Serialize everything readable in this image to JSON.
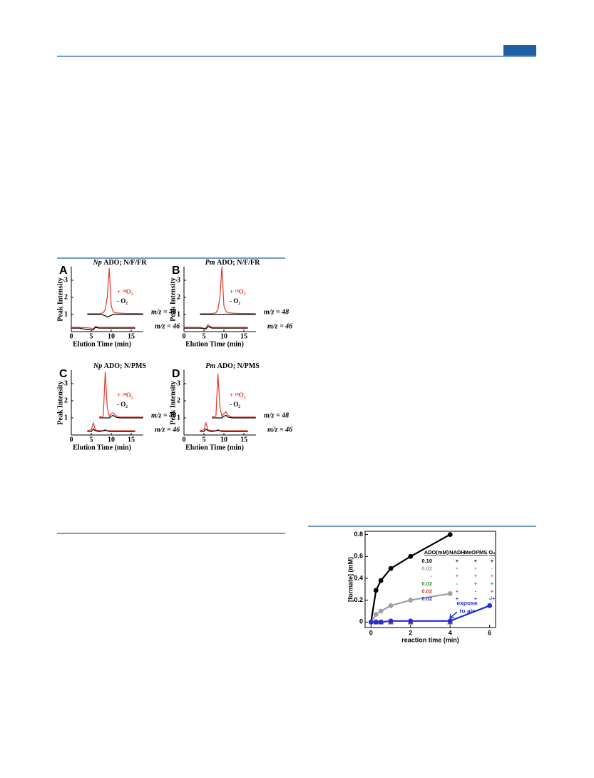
{
  "chart_data": [
    {
      "type": "line",
      "letter": "A",
      "species": "Np",
      "title": "ADO; N/F/FR",
      "xlabel": "Elution Time (min)",
      "ylabel": "Peak Intensity",
      "annotations": [
        "m/z = 48",
        "m/z = 46"
      ],
      "xlim": [
        0,
        18
      ],
      "ylim": [
        0,
        3.8
      ],
      "xticks": [
        0,
        5,
        10,
        15
      ],
      "yticks": [
        1,
        2,
        3
      ],
      "x": [
        0,
        2,
        4,
        5,
        5.5,
        6,
        7,
        8,
        8.5,
        9,
        9.5,
        10,
        10.5,
        11,
        12,
        14,
        16,
        18
      ],
      "series": [
        {
          "name": "+ ¹⁸O₂",
          "color": "#e8362c",
          "values": [
            null,
            null,
            1.05,
            1.05,
            1.05,
            1.05,
            1.05,
            1.1,
            1.3,
            2.0,
            3.7,
            1.5,
            1.15,
            1.1,
            1.08,
            1.06,
            1.06,
            1.05
          ]
        },
        {
          "name": "- O₂",
          "color": "#000000",
          "values": [
            null,
            null,
            1,
            1,
            1,
            1,
            1,
            0.97,
            0.92,
            0.85,
            0.9,
            0.95,
            1,
            1,
            1,
            1,
            1,
            1
          ]
        },
        {
          "color": "#e8362c",
          "values": [
            0.25,
            0.25,
            0.22,
            0.2,
            0.15,
            0.3,
            0.25,
            0.25,
            0.25,
            0.25,
            0.25,
            0.25,
            0.25,
            0.25,
            0.25,
            0.25,
            0.25,
            null
          ]
        },
        {
          "color": "#000000",
          "values": [
            0.2,
            0.2,
            0.12,
            0.1,
            0.1,
            0.25,
            0.2,
            0.2,
            0.2,
            0.2,
            0.2,
            0.2,
            0.2,
            0.2,
            0.2,
            0.2,
            0.2,
            null
          ]
        }
      ]
    },
    {
      "type": "line",
      "letter": "B",
      "species": "Pm",
      "title": "ADO; N/F/FR",
      "xlabel": "Elution Time (min)",
      "ylabel": "Peak Intensity",
      "annotations": [
        "m/z = 48",
        "m/z = 46"
      ],
      "xlim": [
        0,
        18
      ],
      "ylim": [
        0,
        3.8
      ],
      "xticks": [
        0,
        5,
        10,
        15
      ],
      "yticks": [
        1,
        2,
        3
      ],
      "x": [
        0,
        2,
        4,
        5,
        5.5,
        6,
        7,
        8,
        8.5,
        9,
        9.5,
        10,
        10.5,
        11,
        12,
        14,
        16,
        18
      ],
      "series": [
        {
          "name": "+ ¹⁸O₂",
          "color": "#e8362c",
          "values": [
            null,
            null,
            1.05,
            1.05,
            1.05,
            1.05,
            1.05,
            1.1,
            1.3,
            2.0,
            3.8,
            1.5,
            1.2,
            1.1,
            1.08,
            1.06,
            1.06,
            1.05
          ]
        },
        {
          "name": "- O₂",
          "color": "#000000",
          "values": [
            null,
            null,
            1,
            1,
            1,
            1,
            1,
            1,
            1,
            1,
            1,
            1,
            1.02,
            1,
            1,
            1,
            1,
            1
          ]
        },
        {
          "color": "#e8362c",
          "values": [
            0.25,
            0.25,
            0.25,
            0.2,
            0.2,
            0.4,
            0.25,
            0.25,
            0.25,
            0.25,
            0.25,
            0.25,
            0.25,
            0.25,
            0.25,
            0.25,
            0.25,
            null
          ]
        },
        {
          "color": "#000000",
          "values": [
            0.2,
            0.2,
            0.2,
            0.18,
            0.15,
            0.3,
            0.2,
            0.2,
            0.2,
            0.2,
            0.2,
            0.2,
            0.2,
            0.2,
            0.2,
            0.2,
            0.2,
            null
          ]
        }
      ]
    },
    {
      "type": "line",
      "letter": "C",
      "species": "Np",
      "title": "ADO; N/PMS",
      "xlabel": "Elution Time (min)",
      "ylabel": "Peak Intensity",
      "annotations": [
        "m/z = 48",
        "m/z = 46"
      ],
      "xlim": [
        0,
        18
      ],
      "ylim": [
        0,
        3.8
      ],
      "xticks": [
        0,
        5,
        10,
        15
      ],
      "yticks": [
        1,
        2,
        3
      ],
      "x": [
        0,
        2,
        4,
        5,
        5.5,
        6,
        7,
        8,
        8.5,
        9,
        9.5,
        10,
        10.5,
        11,
        12,
        14,
        16,
        18
      ],
      "series": [
        {
          "name": "+ ¹⁸O₂",
          "color": "#e8362c",
          "values": [
            null,
            null,
            null,
            null,
            null,
            null,
            1.05,
            1.1,
            3.7,
            1.6,
            1.1,
            1.25,
            1.3,
            1.15,
            1.05,
            1.05,
            1.05,
            1.05
          ]
        },
        {
          "name": "- O₂",
          "color": "#000000",
          "values": [
            null,
            null,
            null,
            null,
            null,
            null,
            1,
            1,
            1,
            1,
            1,
            1.1,
            1.15,
            1.05,
            1,
            1,
            1,
            1
          ]
        },
        {
          "color": "#e8362c",
          "values": [
            null,
            null,
            0.25,
            0.3,
            0.7,
            0.3,
            0.25,
            0.25,
            0.25,
            0.25,
            0.25,
            0.25,
            0.25,
            0.25,
            0.25,
            0.25,
            0.25,
            null
          ]
        },
        {
          "color": "#000000",
          "values": [
            null,
            null,
            0.2,
            0.2,
            0.35,
            0.25,
            0.2,
            0.25,
            0.3,
            0.25,
            0.2,
            0.2,
            0.2,
            0.2,
            0.2,
            0.2,
            0.2,
            null
          ]
        }
      ]
    },
    {
      "type": "line",
      "letter": "D",
      "species": "Pm",
      "title": "ADO; N/PMS",
      "xlabel": "Elution Time (min)",
      "ylabel": "Peak Intensity",
      "annotations": [
        "m/z = 48",
        "m/z = 46"
      ],
      "xlim": [
        0,
        18
      ],
      "ylim": [
        0,
        3.8
      ],
      "xticks": [
        0,
        5,
        10,
        15
      ],
      "yticks": [
        1,
        2,
        3
      ],
      "x": [
        0,
        2,
        4,
        5,
        5.5,
        6,
        7,
        8,
        8.5,
        9,
        9.5,
        10,
        10.5,
        11,
        12,
        14,
        16,
        18
      ],
      "series": [
        {
          "name": "+ ¹⁸O₂",
          "color": "#e8362c",
          "values": [
            null,
            null,
            null,
            null,
            null,
            null,
            1.05,
            1.1,
            3.6,
            1.6,
            1.1,
            1.25,
            1.35,
            1.15,
            1.05,
            1.05,
            1.05,
            1.05
          ]
        },
        {
          "name": "- O₂",
          "color": "#000000",
          "values": [
            null,
            null,
            null,
            null,
            null,
            null,
            1,
            1,
            1,
            1,
            1,
            1.1,
            1.15,
            1.05,
            1,
            1,
            1,
            1
          ]
        },
        {
          "color": "#e8362c",
          "values": [
            null,
            null,
            0.25,
            0.3,
            0.7,
            0.3,
            0.25,
            0.25,
            0.25,
            0.25,
            0.25,
            0.25,
            0.25,
            0.25,
            0.25,
            0.25,
            0.25,
            null
          ]
        },
        {
          "color": "#000000",
          "values": [
            null,
            null,
            0.2,
            0.2,
            0.35,
            0.25,
            0.2,
            0.25,
            0.3,
            0.25,
            0.2,
            0.2,
            0.2,
            0.2,
            0.2,
            0.2,
            0.2,
            null
          ]
        }
      ]
    },
    {
      "type": "scatter",
      "xlabel": "reaction time (min)",
      "ylabel": "[formate] (mM)",
      "annotation": [
        "expose",
        "to air"
      ],
      "xlim": [
        -0.3,
        6.3
      ],
      "ylim": [
        -0.05,
        0.83
      ],
      "xticks": [
        0,
        2,
        4,
        6
      ],
      "yticks": [
        0,
        0.2,
        0.4,
        0.6,
        0.8
      ],
      "legend_header": [
        "ADO(mM)",
        "NADH",
        "MeOPMS",
        "O₂"
      ],
      "series": [
        {
          "legend_row": [
            "0.10",
            "+",
            "+",
            "+"
          ],
          "color": "#000000",
          "marker": "circle",
          "line": true,
          "x": [
            0,
            0.25,
            0.5,
            1,
            2,
            4
          ],
          "values": [
            0,
            0.29,
            0.38,
            0.49,
            0.6,
            0.8
          ]
        },
        {
          "legend_row": [
            "0.02",
            "+",
            "+",
            "-"
          ],
          "color": "#a0a0a0",
          "marker": "circle",
          "line": true,
          "x": [
            0,
            0.25,
            0.5,
            1,
            2,
            4
          ],
          "values": [
            0,
            0.07,
            0.1,
            0.15,
            0.2,
            0.26
          ]
        },
        {
          "legend_row": [
            "-",
            "+",
            "+",
            "+"
          ],
          "color": "#cc33cc",
          "marker": "triangle",
          "line": false,
          "x": [
            0.25,
            0.5,
            1,
            2,
            4
          ],
          "values": [
            0,
            0,
            0,
            0,
            0
          ]
        },
        {
          "legend_row": [
            "0.02",
            "-",
            "+",
            "+"
          ],
          "color": "#2e8b2e",
          "marker": "triangle",
          "line": false,
          "x": [
            0.25,
            0.5,
            1,
            2,
            4
          ],
          "values": [
            0,
            0,
            0,
            0,
            0
          ]
        },
        {
          "legend_row": [
            "0.02",
            "+",
            "-",
            "+"
          ],
          "color": "#e03020",
          "marker": "square",
          "line": false,
          "x": [
            0.25,
            0.5,
            1,
            2,
            4
          ],
          "values": [
            0,
            0,
            0,
            0,
            0
          ]
        },
        {
          "legend_row": [
            "0.02",
            "+",
            "+",
            "-/+"
          ],
          "color": "#1f2fd6",
          "marker": "circle",
          "line": true,
          "x": [
            0,
            0.25,
            0.5,
            1,
            2,
            4,
            6
          ],
          "values": [
            0,
            0,
            0,
            0.01,
            0.01,
            0.01,
            0.15
          ]
        }
      ]
    }
  ]
}
